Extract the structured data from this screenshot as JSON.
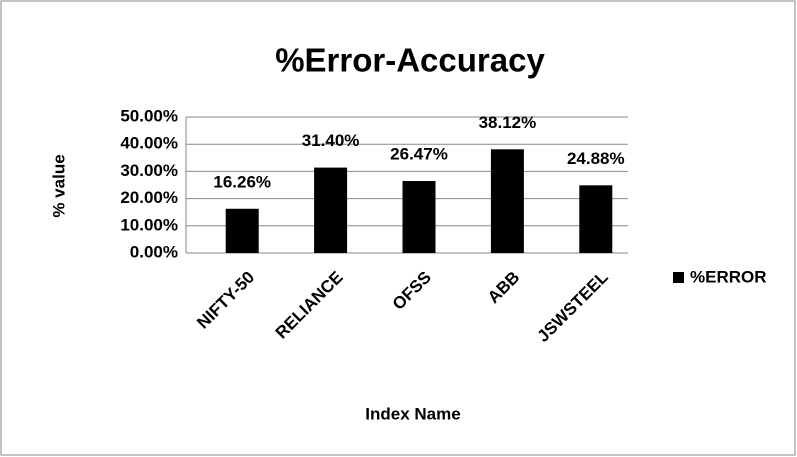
{
  "chart_data": {
    "type": "bar",
    "title": "%Error-Accuracy",
    "x_label": "Index Name",
    "y_label": "% value",
    "categories": [
      "NIFTY-50",
      "RELIANCE",
      "OFSS",
      "ABB",
      "JSWSTEEL"
    ],
    "series": [
      {
        "name": "%ERROR",
        "color": "#000000",
        "values": [
          16.26,
          31.4,
          26.47,
          38.12,
          24.88
        ],
        "value_labels": [
          "16.26%",
          "31.40%",
          "26.47%",
          "38.12%",
          "24.88%"
        ]
      }
    ],
    "ylim": [
      0,
      50
    ],
    "yticks": [
      {
        "value": 0,
        "label": "0.00%"
      },
      {
        "value": 10,
        "label": "10.00%"
      },
      {
        "value": 20,
        "label": "20.00%"
      },
      {
        "value": 30,
        "label": "30.00%"
      },
      {
        "value": 40,
        "label": "40.00%"
      },
      {
        "value": 50,
        "label": "50.00%"
      }
    ],
    "grid": true,
    "legend": "right"
  }
}
